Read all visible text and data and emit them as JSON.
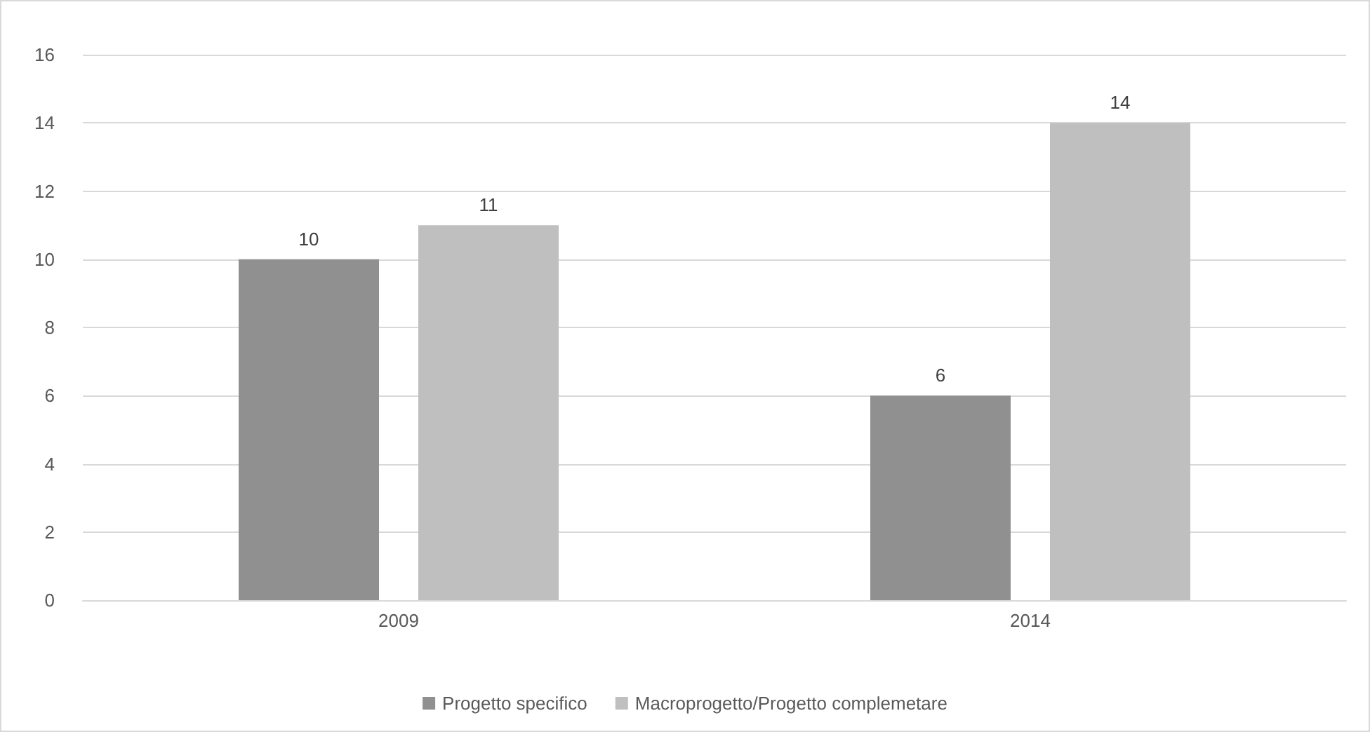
{
  "chart_data": {
    "type": "bar",
    "categories": [
      "2009",
      "2014"
    ],
    "series": [
      {
        "name": "Progetto specifico",
        "color": "#909090",
        "values": [
          10,
          6
        ]
      },
      {
        "name": "Macroprogetto/Progetto complemetare",
        "color": "#bfbfbf",
        "values": [
          11,
          14
        ]
      }
    ],
    "ylim": [
      0,
      16
    ],
    "yticks": [
      0,
      2,
      4,
      6,
      8,
      10,
      12,
      14,
      16
    ],
    "grid": "y",
    "legend": "bottom",
    "data_labels": true
  }
}
